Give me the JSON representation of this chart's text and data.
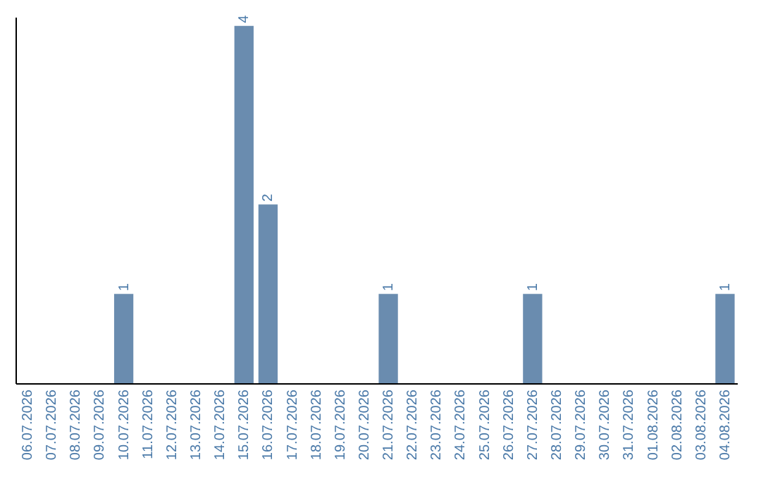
{
  "chart_data": {
    "type": "bar",
    "categories": [
      "06.07.2026",
      "07.07.2026",
      "08.07.2026",
      "09.07.2026",
      "10.07.2026",
      "11.07.2026",
      "12.07.2026",
      "13.07.2026",
      "14.07.2026",
      "15.07.2026",
      "16.07.2026",
      "17.07.2026",
      "18.07.2026",
      "19.07.2026",
      "20.07.2026",
      "21.07.2026",
      "22.07.2026",
      "23.07.2026",
      "24.07.2026",
      "25.07.2026",
      "26.07.2026",
      "27.07.2026",
      "28.07.2026",
      "29.07.2026",
      "30.07.2026",
      "31.07.2026",
      "01.08.2026",
      "02.08.2026",
      "03.08.2026",
      "04.08.2026"
    ],
    "values": [
      0,
      0,
      0,
      0,
      1,
      0,
      0,
      0,
      0,
      4,
      2,
      0,
      0,
      0,
      0,
      1,
      0,
      0,
      0,
      0,
      0,
      1,
      0,
      0,
      0,
      0,
      0,
      0,
      0,
      1
    ],
    "value_labels": [
      null,
      null,
      null,
      null,
      "1",
      null,
      null,
      null,
      null,
      "4",
      "2",
      null,
      null,
      null,
      null,
      "1",
      null,
      null,
      null,
      null,
      null,
      "1",
      null,
      null,
      null,
      null,
      null,
      null,
      null,
      "1"
    ],
    "color": "#6a8caf",
    "ylim": [
      0,
      4.1
    ],
    "tick_labels": "x"
  }
}
